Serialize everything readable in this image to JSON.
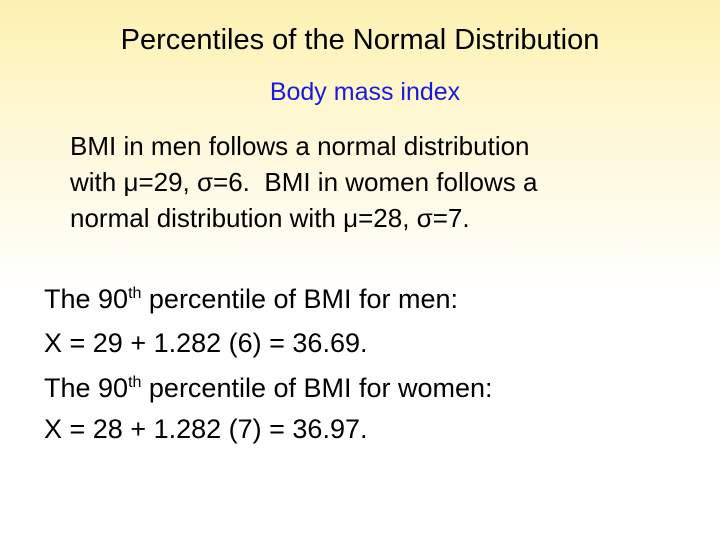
{
  "title": "Percentiles of the Normal Distribution",
  "subtitle": "Body mass index",
  "intro": [
    "BMI in men follows a normal distribution",
    "with μ=29, σ=6.  BMI in women follows a",
    "normal distribution with μ=28, σ=7."
  ],
  "results": [
    {
      "text": "The 90",
      "sup": "th",
      "rest": " percentile of BMI for men:"
    },
    {
      "text": "X = 29 + 1.282 (6) = 36.69."
    },
    {
      "text": "The 90",
      "sup": "th",
      "rest": " percentile of BMI for women:"
    },
    {
      "text": "X = 28 + 1.282 (7) = 36.97."
    }
  ]
}
